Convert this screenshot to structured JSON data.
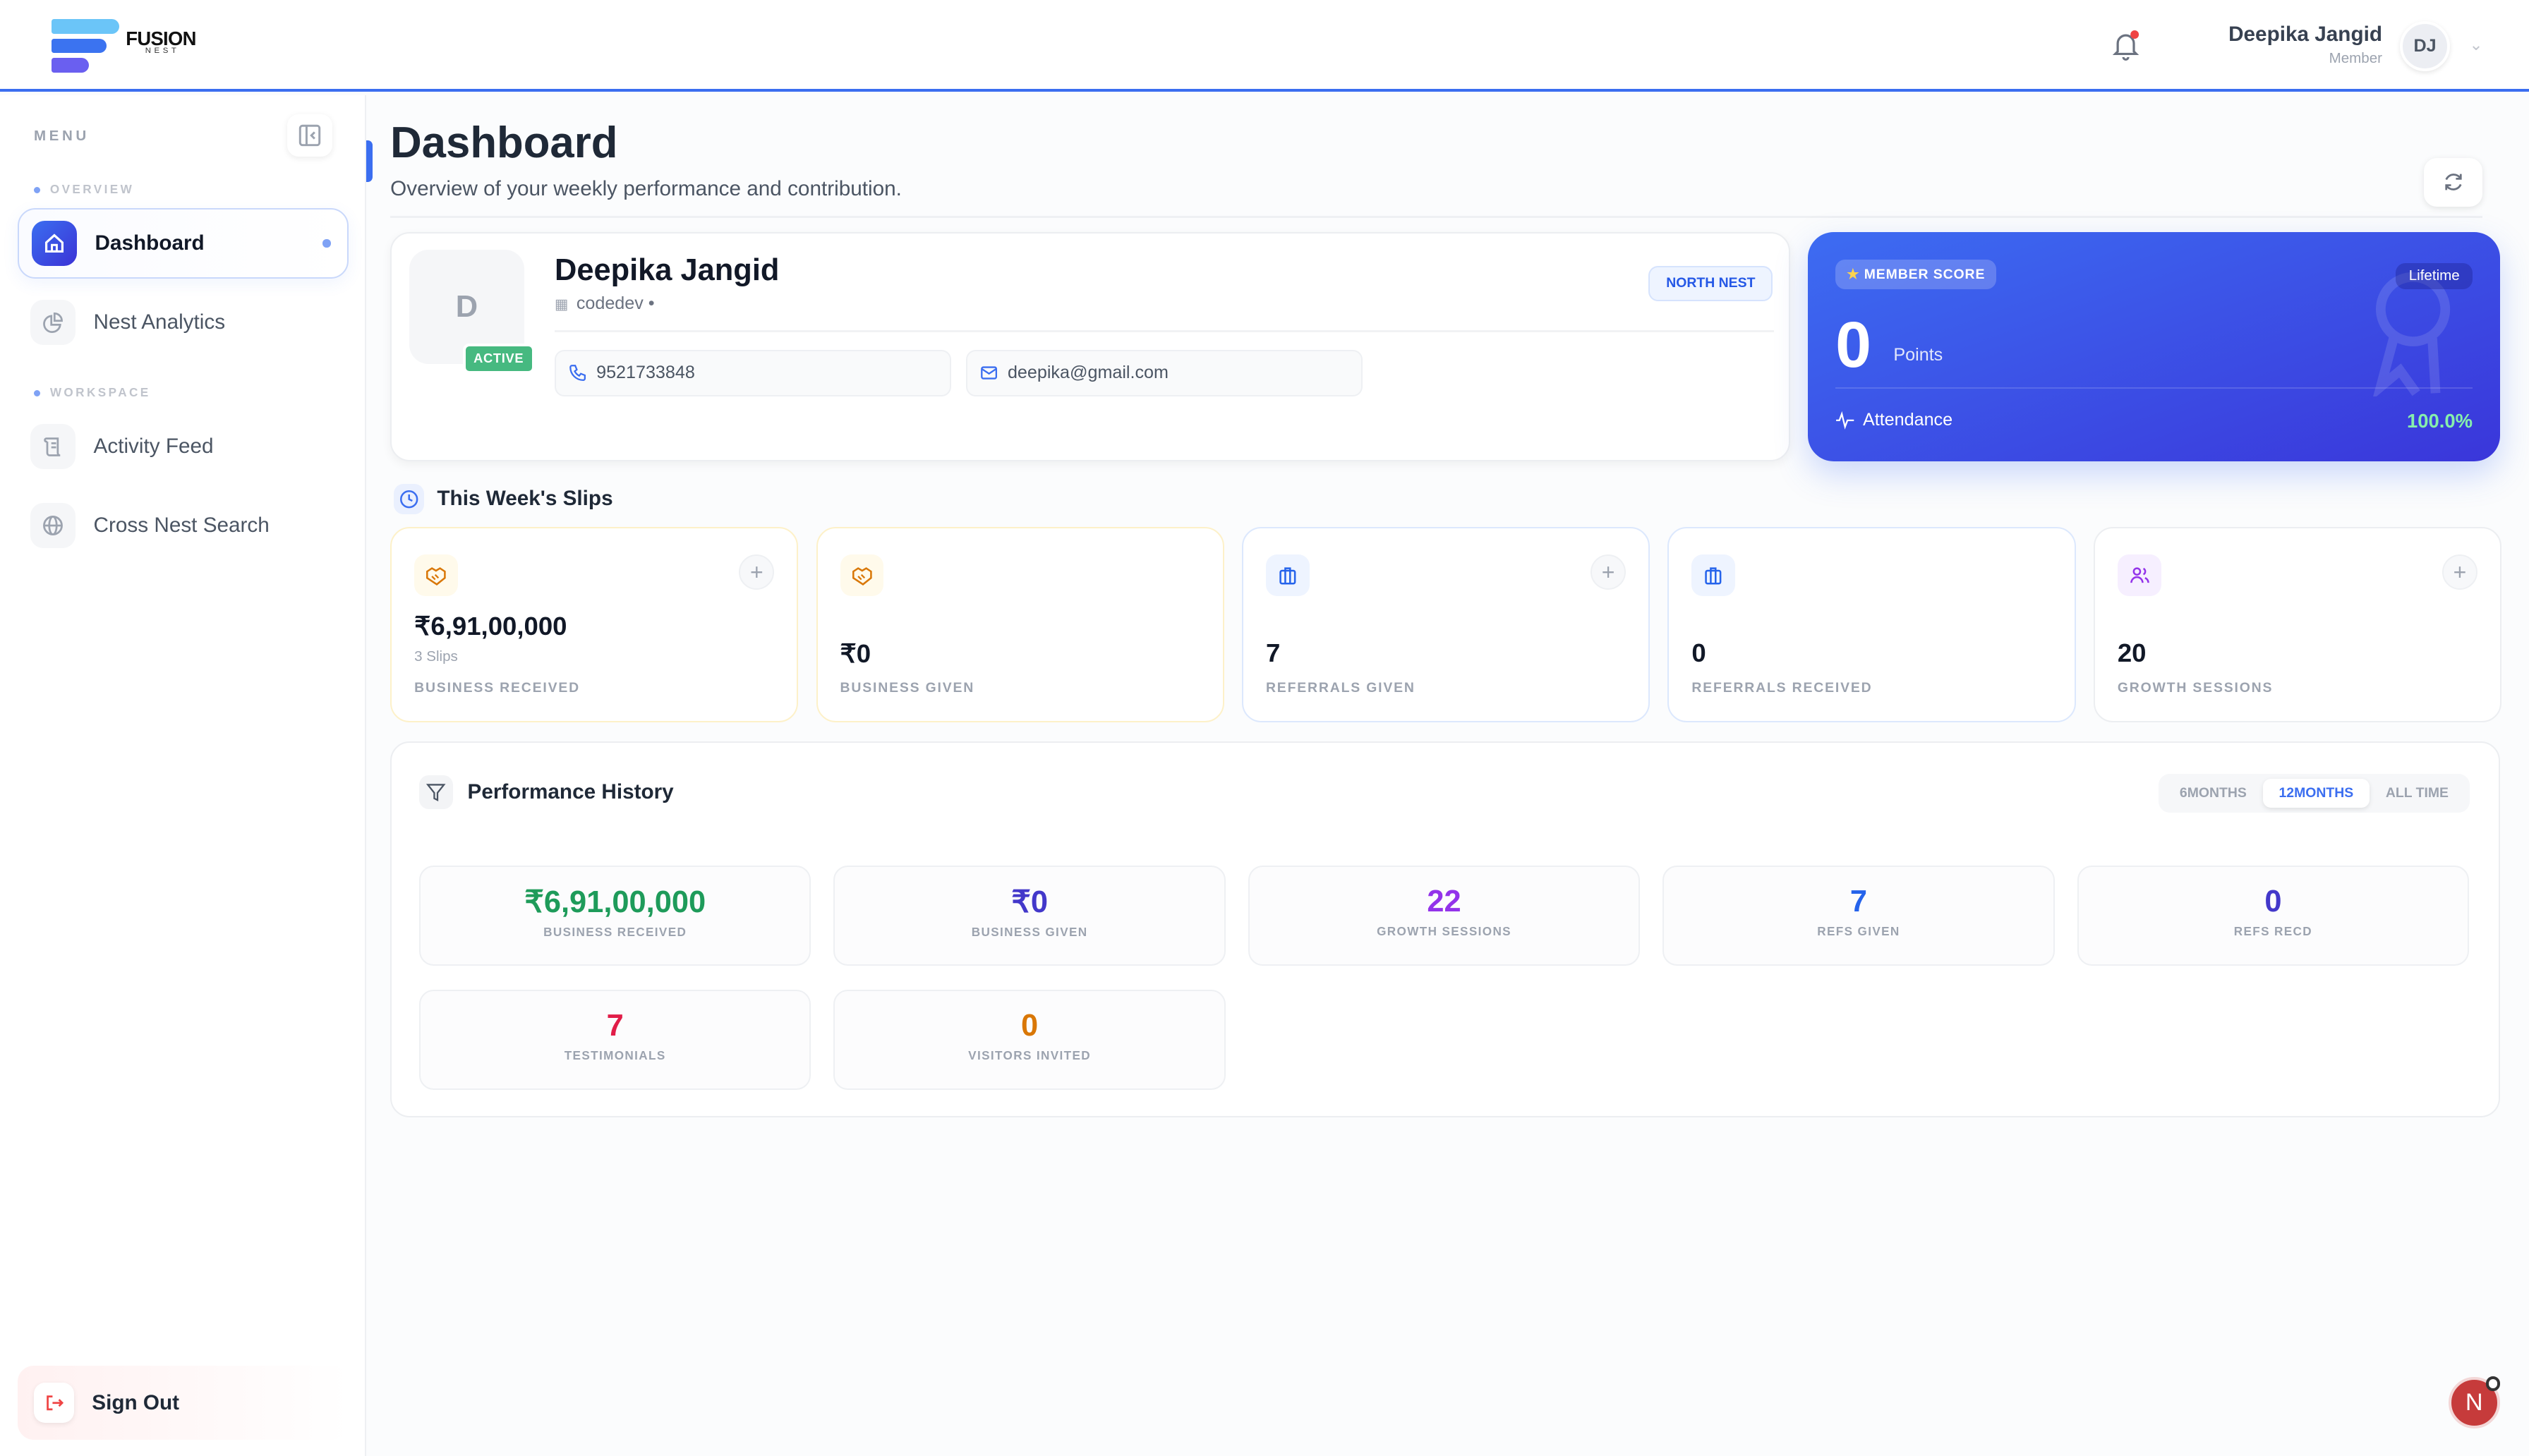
{
  "brand": {
    "name": "FUSION",
    "sub": "NEST",
    "colors": [
      "#6bc5f8",
      "#3b73f0",
      "#6a5ff0"
    ]
  },
  "header": {
    "user_name": "Deepika Jangid",
    "user_role": "Member",
    "avatar_initials": "DJ",
    "notification_dot": true
  },
  "sidebar": {
    "menu_label": "MENU",
    "sections": [
      {
        "label": "OVERVIEW",
        "items": [
          {
            "label": "Dashboard",
            "icon": "home-icon",
            "active": true
          },
          {
            "label": "Nest Analytics",
            "icon": "pie-chart-icon"
          }
        ]
      },
      {
        "label": "WORKSPACE",
        "items": [
          {
            "label": "Activity Feed",
            "icon": "scroll-icon"
          },
          {
            "label": "Cross Nest Search",
            "icon": "globe-icon"
          }
        ]
      }
    ],
    "sign_out": "Sign Out"
  },
  "page": {
    "title": "Dashboard",
    "subtitle": "Overview of your weekly performance and contribution."
  },
  "profile": {
    "initial": "D",
    "status": "ACTIVE",
    "name": "Deepika Jangid",
    "org": "codedev •",
    "nest": "NORTH NEST",
    "phone": "9521733848",
    "email": "deepika@gmail.com"
  },
  "score": {
    "badge": "MEMBER SCORE",
    "period": "Lifetime",
    "points": "0",
    "points_label": "Points",
    "attendance_label": "Attendance",
    "attendance_value": "100.0%"
  },
  "slips": {
    "title": "This Week's Slips",
    "cards": [
      {
        "value": "₹6,91,00,000",
        "sub": "3 Slips",
        "label": "BUSINESS RECEIVED",
        "icon": "handshake-icon",
        "addable": true
      },
      {
        "value": "₹0",
        "label": "BUSINESS GIVEN",
        "icon": "handshake-icon",
        "addable": false
      },
      {
        "value": "7",
        "label": "REFERRALS GIVEN",
        "icon": "briefcase-icon",
        "addable": true
      },
      {
        "value": "0",
        "label": "REFERRALS RECEIVED",
        "icon": "briefcase-icon",
        "addable": false
      },
      {
        "value": "20",
        "label": "GROWTH SESSIONS",
        "icon": "users-icon",
        "addable": true
      }
    ]
  },
  "performance": {
    "title": "Performance History",
    "tabs": [
      "6MONTHS",
      "12MONTHS",
      "ALL TIME"
    ],
    "active_tab": "12MONTHS",
    "stats": [
      {
        "value": "₹6,91,00,000",
        "label": "BUSINESS RECEIVED",
        "color": "#1e9b5a"
      },
      {
        "value": "₹0",
        "label": "BUSINESS GIVEN",
        "color": "#4338ca"
      },
      {
        "value": "22",
        "label": "GROWTH SESSIONS",
        "color": "#9333ea"
      },
      {
        "value": "7",
        "label": "REFS GIVEN",
        "color": "#2563eb"
      },
      {
        "value": "0",
        "label": "REFS RECD",
        "color": "#4338ca"
      },
      {
        "value": "7",
        "label": "TESTIMONIALS",
        "color": "#e11d48"
      },
      {
        "value": "0",
        "label": "VISITORS INVITED",
        "color": "#d97706"
      }
    ]
  },
  "fab": {
    "initial": "N"
  }
}
